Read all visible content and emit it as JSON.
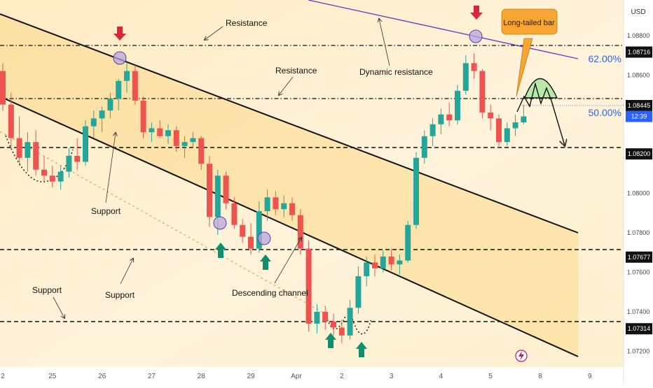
{
  "chart_data": {
    "type": "candlestick",
    "instrument_currency": "USD",
    "price_axis": {
      "min": 1.0712,
      "max": 1.0898,
      "ticks": [
        "1.08800",
        "1.08600",
        "1.08400",
        "1.08200",
        "1.08000",
        "1.07800",
        "1.07600",
        "1.07400",
        "1.07200"
      ],
      "tick_values": [
        1.088,
        1.086,
        1.084,
        1.082,
        1.08,
        1.078,
        1.076,
        1.074,
        1.072
      ],
      "level_tags": [
        {
          "label": "1.08716",
          "value": 1.08716,
          "style": "dash-dot"
        },
        {
          "label": "1.08445",
          "value": 1.08445,
          "style": "dash-dot"
        },
        {
          "label": "1.08200",
          "value": 1.082,
          "style": "dashed"
        },
        {
          "label": "1.07677",
          "value": 1.07677,
          "style": "dashed"
        },
        {
          "label": "1.07314",
          "value": 1.07314,
          "style": "dashed"
        }
      ],
      "current_price_tag": {
        "label": "12:39",
        "value": 1.0839
      }
    },
    "time_axis": {
      "labels": [
        "2",
        "25",
        "26",
        "27",
        "28",
        "29",
        "Apr",
        "2",
        "3",
        "4",
        "5",
        "8",
        "9"
      ],
      "positions": [
        0,
        6,
        12,
        18,
        24,
        30,
        35.5,
        41,
        47,
        53,
        59,
        65,
        71
      ]
    },
    "fib_labels": [
      {
        "label": "62.00%",
        "value": 1.0864
      },
      {
        "label": "50.00%",
        "value": 1.0836
      }
    ],
    "candles": [
      [
        1.0862,
        1.0866,
        1.0842,
        1.0845
      ],
      [
        1.0845,
        1.0851,
        1.0823,
        1.0828
      ],
      [
        1.0828,
        1.0839,
        1.0814,
        1.0818
      ],
      [
        1.0818,
        1.0831,
        1.0811,
        1.0826
      ],
      [
        1.0826,
        1.0832,
        1.0809,
        1.0812
      ],
      [
        1.0812,
        1.0819,
        1.0806,
        1.0809
      ],
      [
        1.0809,
        1.0814,
        1.0803,
        1.0806
      ],
      [
        1.0806,
        1.0814,
        1.0802,
        1.0811
      ],
      [
        1.0811,
        1.0823,
        1.0808,
        1.0819
      ],
      [
        1.0819,
        1.0828,
        1.0812,
        1.0816
      ],
      [
        1.0816,
        1.0837,
        1.0814,
        1.0834
      ],
      [
        1.0834,
        1.0842,
        1.0828,
        1.0838
      ],
      [
        1.0838,
        1.0844,
        1.0831,
        1.0842
      ],
      [
        1.0842,
        1.0851,
        1.0838,
        1.0848
      ],
      [
        1.0848,
        1.0858,
        1.0842,
        1.0857
      ],
      [
        1.0857,
        1.0866,
        1.0851,
        1.0862
      ],
      [
        1.0862,
        1.0865,
        1.0845,
        1.0847
      ],
      [
        1.0847,
        1.0849,
        1.0828,
        1.0831
      ],
      [
        1.0831,
        1.0836,
        1.0826,
        1.0833
      ],
      [
        1.0833,
        1.0837,
        1.0828,
        1.0829
      ],
      [
        1.0829,
        1.0835,
        1.0825,
        1.0832
      ],
      [
        1.0832,
        1.0834,
        1.0821,
        1.0824
      ],
      [
        1.0824,
        1.0829,
        1.0818,
        1.0826
      ],
      [
        1.0826,
        1.0831,
        1.0823,
        1.0828
      ],
      [
        1.0828,
        1.0829,
        1.0812,
        1.0815
      ],
      [
        1.0815,
        1.0819,
        1.0783,
        1.0788
      ],
      [
        1.0788,
        1.0812,
        1.0779,
        1.0809
      ],
      [
        1.0809,
        1.0811,
        1.0792,
        1.0795
      ],
      [
        1.0795,
        1.0798,
        1.0782,
        1.0784
      ],
      [
        1.0784,
        1.0787,
        1.0775,
        1.0778
      ],
      [
        1.0778,
        1.0785,
        1.0769,
        1.0772
      ],
      [
        1.0772,
        1.0796,
        1.077,
        1.0791
      ],
      [
        1.0791,
        1.0802,
        1.0786,
        1.0798
      ],
      [
        1.0798,
        1.0801,
        1.0789,
        1.0792
      ],
      [
        1.0792,
        1.0799,
        1.0788,
        1.0795
      ],
      [
        1.0795,
        1.0798,
        1.0786,
        1.0789
      ],
      [
        1.0789,
        1.0792,
        1.0769,
        1.0772
      ],
      [
        1.0772,
        1.0776,
        1.073,
        1.0734
      ],
      [
        1.0734,
        1.0744,
        1.0729,
        1.074
      ],
      [
        1.074,
        1.0743,
        1.0731,
        1.0735
      ],
      [
        1.0735,
        1.0739,
        1.0728,
        1.0732
      ],
      [
        1.0732,
        1.0736,
        1.0724,
        1.0728
      ],
      [
        1.0728,
        1.0746,
        1.0726,
        1.0742
      ],
      [
        1.0742,
        1.0763,
        1.0739,
        1.0758
      ],
      [
        1.0758,
        1.0768,
        1.0753,
        1.0765
      ],
      [
        1.0765,
        1.0769,
        1.0758,
        1.0762
      ],
      [
        1.0762,
        1.0771,
        1.076,
        1.0768
      ],
      [
        1.0768,
        1.0772,
        1.0761,
        1.0764
      ],
      [
        1.0764,
        1.0769,
        1.0759,
        1.0766
      ],
      [
        1.0766,
        1.0786,
        1.0765,
        1.0784
      ],
      [
        1.0784,
        1.0821,
        1.0782,
        1.0818
      ],
      [
        1.0818,
        1.0832,
        1.0815,
        1.0829
      ],
      [
        1.0829,
        1.0838,
        1.0824,
        1.0835
      ],
      [
        1.0835,
        1.0843,
        1.083,
        1.084
      ],
      [
        1.084,
        1.0846,
        1.0834,
        1.0837
      ],
      [
        1.0837,
        1.0855,
        1.0835,
        1.0852
      ],
      [
        1.0852,
        1.087,
        1.085,
        1.0866
      ],
      [
        1.0866,
        1.0871,
        1.0858,
        1.0862
      ],
      [
        1.0862,
        1.0863,
        1.0838,
        1.0841
      ],
      [
        1.0841,
        1.0845,
        1.0832,
        1.0838
      ],
      [
        1.0838,
        1.084,
        1.0823,
        1.0826
      ],
      [
        1.0826,
        1.0836,
        1.0824,
        1.0833
      ],
      [
        1.0833,
        1.084,
        1.0829,
        1.0836
      ],
      [
        1.0836,
        1.0845,
        1.0835,
        1.0839
      ]
    ],
    "support_resistance_labels": [
      {
        "text": "Resistance",
        "target": "upper channel line"
      },
      {
        "text": "Resistance",
        "target": "1.08445 level"
      },
      {
        "text": "Dynamic resistance",
        "target": "purple trendline"
      },
      {
        "text": "Support",
        "target": "lower channel line (left)"
      },
      {
        "text": "Support",
        "target": "dotted trendline"
      },
      {
        "text": "Support",
        "target": "1.07314 level"
      },
      {
        "text": "Descending channel",
        "target": "channel"
      }
    ],
    "callout": "Long-tailed bar",
    "grid": false
  },
  "colors": {
    "up": "#26a69a",
    "down": "#ef5350",
    "dynamic_resistance": "#6a3fc4",
    "channel_fill": "#fbd98a",
    "callout_bg": "#f7a533",
    "fib_text": "#2962ff",
    "projection_fill": "#b9e8a8",
    "arrow_down": "#d6283a",
    "arrow_up": "#0e8f6d",
    "circle_fill": "#b7a5dc"
  },
  "icons": {
    "bolt": "lightning-bolt-icon"
  }
}
